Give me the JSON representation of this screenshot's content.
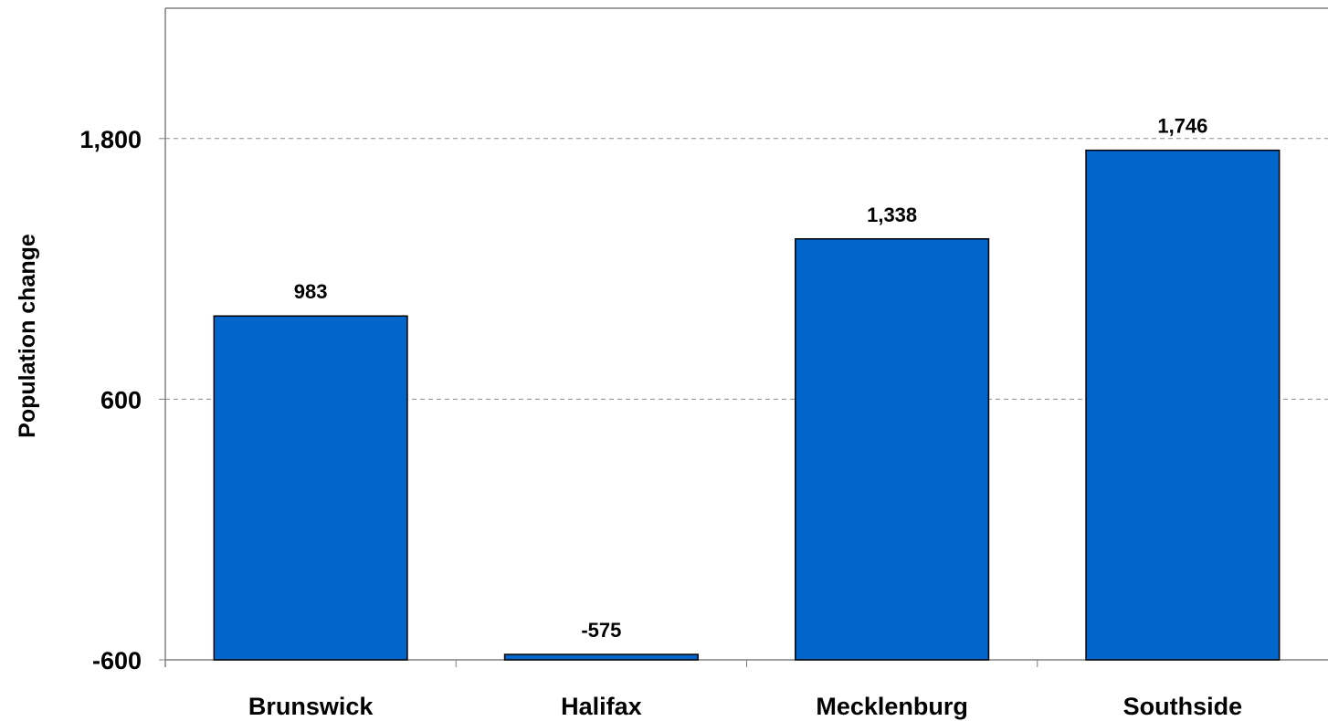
{
  "chart_data": {
    "type": "bar",
    "categories": [
      "Brunswick",
      "Halifax",
      "Mecklenburg",
      "Southside"
    ],
    "values": [
      983,
      -575,
      1338,
      1746
    ],
    "value_labels": [
      "983",
      "-575",
      "1,338",
      "1,746"
    ],
    "xlabel": "",
    "ylabel": "Population change",
    "ylim": [
      -600,
      2400
    ],
    "yticks": [
      -600,
      600,
      1800
    ],
    "ytick_labels": [
      "-600",
      "600",
      "1,800"
    ],
    "grid": "horizontal-dashed",
    "bar_color": "#0066CC",
    "bar_edge_color": "#000000",
    "legend": "none"
  }
}
